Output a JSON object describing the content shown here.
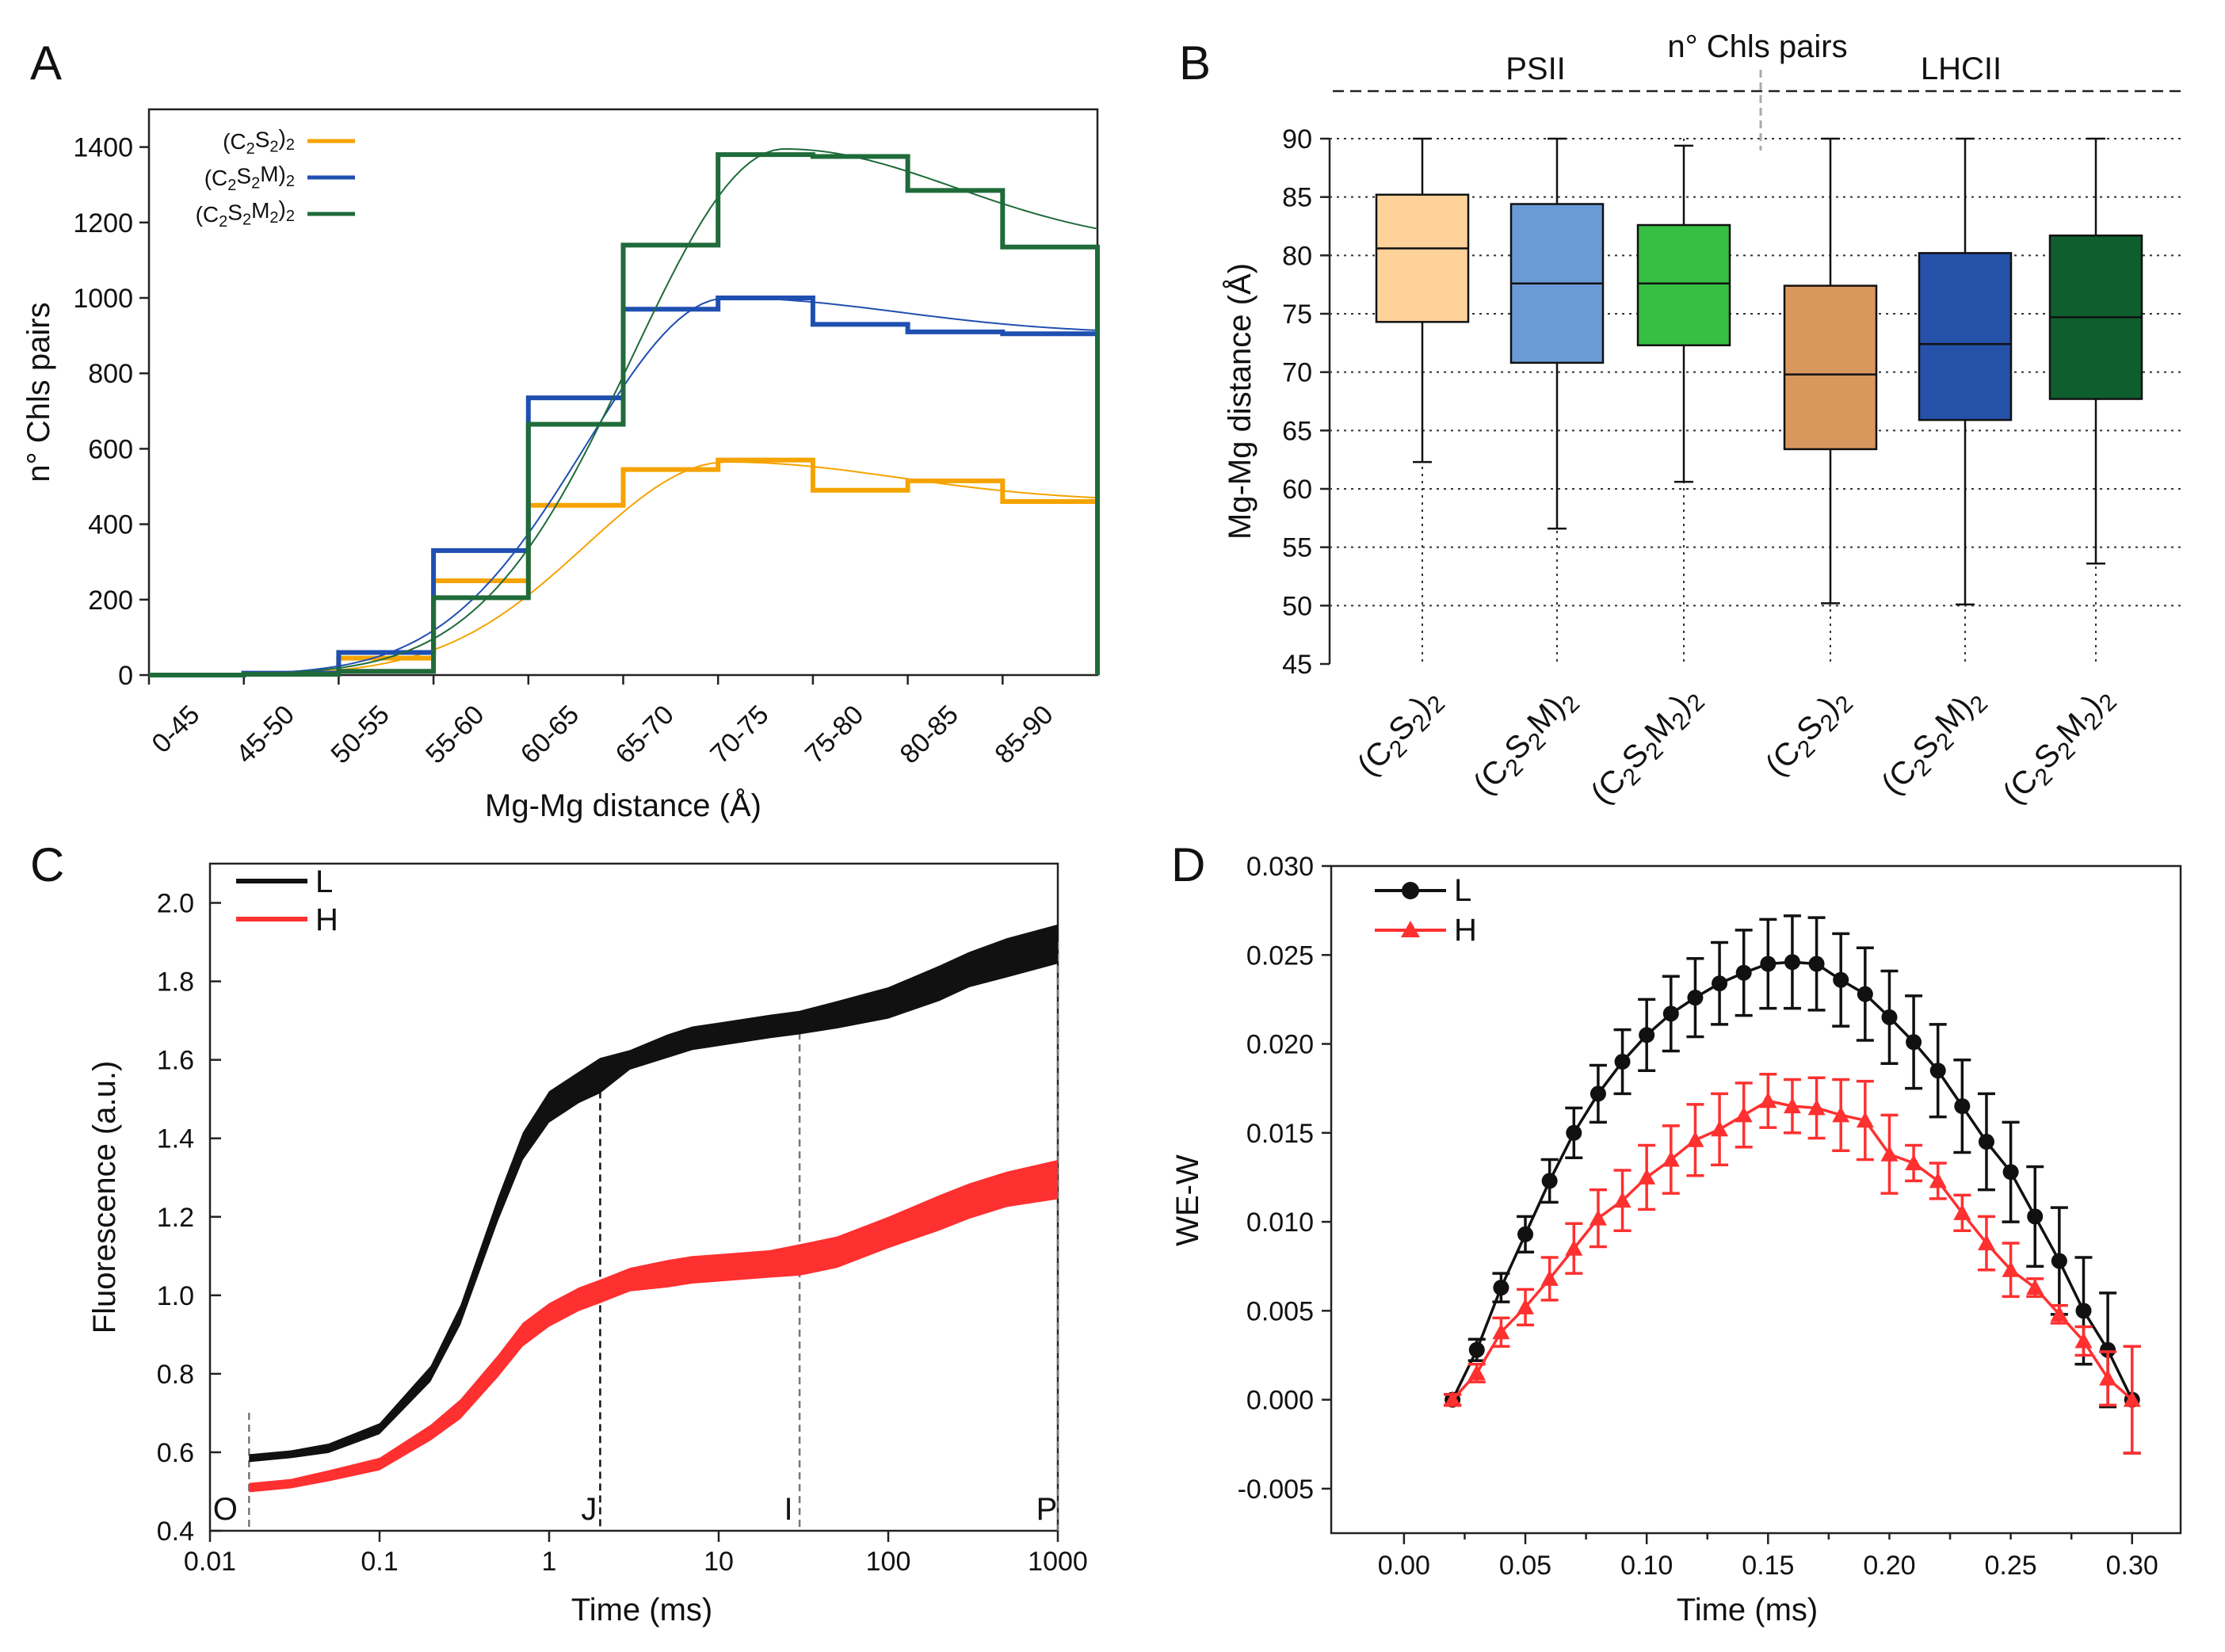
{
  "figure": {
    "labels": [
      "A",
      "B",
      "C",
      "D"
    ]
  },
  "chart_data": [
    {
      "panel": "A",
      "type": "bar",
      "style": "step histogram with fitted curves",
      "title": "",
      "xlabel": "Mg-Mg distance (Å)",
      "ylabel": "n° Chls pairs",
      "ylim": [
        0,
        1500
      ],
      "yticks": [
        0,
        200,
        400,
        600,
        800,
        1000,
        1200,
        1400
      ],
      "grid": false,
      "legend_position": "top-left",
      "categories": [
        "0-45",
        "45-50",
        "50-55",
        "55-60",
        "60-65",
        "65-70",
        "70-75",
        "75-80",
        "80-85",
        "85-90"
      ],
      "series": [
        {
          "name": "(C2S2)2",
          "color": "#f5a300",
          "values": [
            0,
            5,
            45,
            250,
            450,
            545,
            570,
            490,
            515,
            460
          ],
          "fit_peak": 70.5,
          "fit_max": 565
        },
        {
          "name": "(C2S2M)2",
          "color": "#1f4fb0",
          "values": [
            0,
            5,
            60,
            330,
            735,
            970,
            1000,
            930,
            910,
            905
          ],
          "fit_peak": 70.5,
          "fit_max": 1000
        },
        {
          "name": "(C2S2M2)2",
          "color": "#1f6b3a",
          "values": [
            0,
            2,
            10,
            205,
            665,
            1140,
            1380,
            1375,
            1285,
            1135
          ],
          "fit_peak": 73.5,
          "fit_max": 1395
        }
      ]
    },
    {
      "panel": "B",
      "type": "box",
      "title": "n° Chls pairs",
      "groups": [
        "PSII",
        "LHCII"
      ],
      "xlabel": "",
      "ylabel": "Mg-Mg distance (Å)",
      "ylim": [
        45,
        90
      ],
      "yticks": [
        45,
        50,
        55,
        60,
        65,
        70,
        75,
        80,
        85,
        90
      ],
      "grid": true,
      "boxes": [
        {
          "label": "(C2S2)2",
          "group": "PSII",
          "color": "#ffd29a",
          "min": 62.3,
          "q1": 74.3,
          "median": 80.6,
          "q3": 85.2,
          "max": 90
        },
        {
          "label": "(C2S2M)2",
          "group": "PSII",
          "color": "#6b9bd6",
          "min": 56.6,
          "q1": 70.8,
          "median": 77.6,
          "q3": 84.4,
          "max": 90
        },
        {
          "label": "(C2S2M2)2",
          "group": "PSII",
          "color": "#35bf43",
          "min": 60.6,
          "q1": 72.3,
          "median": 77.6,
          "q3": 82.6,
          "max": 89.4
        },
        {
          "label": "(C2S2)2",
          "group": "LHCII",
          "color": "#d9975e",
          "min": 50.2,
          "q1": 63.4,
          "median": 69.8,
          "q3": 77.4,
          "max": 90
        },
        {
          "label": "(C2S2M)2",
          "group": "LHCII",
          "color": "#2551a8",
          "min": 50.1,
          "q1": 65.9,
          "median": 72.4,
          "q3": 80.2,
          "max": 90
        },
        {
          "label": "(C2S2M2)2",
          "group": "LHCII",
          "color": "#0f5e2d",
          "min": 53.6,
          "q1": 67.7,
          "median": 74.7,
          "q3": 81.7,
          "max": 90
        }
      ]
    },
    {
      "panel": "C",
      "type": "line",
      "title": "",
      "xlabel": "Time (ms)",
      "ylabel": "Fluorescence (a.u.)",
      "xscale": "log",
      "xlim": [
        0.01,
        1000
      ],
      "xticks": [
        0.01,
        0.1,
        1,
        10,
        100,
        1000
      ],
      "xticklabels": [
        "0.01",
        "0.1",
        "1",
        "10",
        "100",
        "1000"
      ],
      "ylim": [
        0.4,
        2.1
      ],
      "yticks": [
        0.4,
        0.6,
        0.8,
        1.0,
        1.2,
        1.4,
        1.6,
        1.8,
        2.0
      ],
      "yticklabels": [
        "0.4",
        "0.6",
        "0.8",
        "1.0",
        "1.2",
        "1.4",
        "1.6",
        "1.8",
        "2.0"
      ],
      "legend_position": "top-left",
      "markers": [
        {
          "label": "O",
          "x": 0.017
        },
        {
          "label": "J",
          "x": 2
        },
        {
          "label": "I",
          "x": 30
        },
        {
          "label": "P",
          "x": 1000
        }
      ],
      "x": [
        0.017,
        0.03,
        0.05,
        0.1,
        0.2,
        0.3,
        0.5,
        0.7,
        1,
        1.5,
        2,
        3,
        5,
        7,
        10,
        20,
        30,
        50,
        100,
        200,
        300,
        500,
        1000
      ],
      "series": [
        {
          "name": "L",
          "color": "#111111",
          "values": [
            0.585,
            0.595,
            0.61,
            0.66,
            0.8,
            0.95,
            1.22,
            1.38,
            1.48,
            1.53,
            1.56,
            1.6,
            1.635,
            1.655,
            1.665,
            1.685,
            1.695,
            1.715,
            1.745,
            1.795,
            1.83,
            1.86,
            1.895
          ],
          "error": [
            0.01,
            0.01,
            0.012,
            0.014,
            0.02,
            0.025,
            0.03,
            0.035,
            0.04,
            0.04,
            0.045,
            0.025,
            0.03,
            0.03,
            0.03,
            0.03,
            0.03,
            0.035,
            0.04,
            0.045,
            0.045,
            0.05,
            0.05
          ]
        },
        {
          "name": "H",
          "color": "#ff3030",
          "values": [
            0.51,
            0.52,
            0.54,
            0.57,
            0.65,
            0.71,
            0.82,
            0.9,
            0.95,
            0.99,
            1.01,
            1.04,
            1.055,
            1.065,
            1.07,
            1.08,
            1.09,
            1.11,
            1.16,
            1.21,
            1.24,
            1.27,
            1.295
          ],
          "error": [
            0.012,
            0.012,
            0.014,
            0.016,
            0.02,
            0.025,
            0.028,
            0.03,
            0.03,
            0.03,
            0.03,
            0.03,
            0.035,
            0.035,
            0.035,
            0.035,
            0.04,
            0.04,
            0.04,
            0.045,
            0.045,
            0.045,
            0.05
          ]
        }
      ]
    },
    {
      "panel": "D",
      "type": "line",
      "title": "",
      "xlabel": "Time (ms)",
      "ylabel": "WE-W",
      "xlim": [
        -0.03,
        0.32
      ],
      "xticks": [
        0,
        0.05,
        0.1,
        0.15,
        0.2,
        0.25,
        0.3
      ],
      "xticklabels": [
        "0.00",
        "0.05",
        "0.10",
        "0.15",
        "0.20",
        "0.25",
        "0.30"
      ],
      "ylim": [
        -0.0075,
        0.03
      ],
      "yticks": [
        -0.005,
        0,
        0.005,
        0.01,
        0.015,
        0.02,
        0.025,
        0.03
      ],
      "yticklabels": [
        "-0.005",
        "0.000",
        "0.005",
        "0.010",
        "0.015",
        "0.020",
        "0.025",
        "0.030"
      ],
      "legend_position": "top-left",
      "x": [
        0.02,
        0.03,
        0.04,
        0.05,
        0.06,
        0.07,
        0.08,
        0.09,
        0.1,
        0.11,
        0.12,
        0.13,
        0.14,
        0.15,
        0.16,
        0.17,
        0.18,
        0.19,
        0.2,
        0.21,
        0.22,
        0.23,
        0.24,
        0.25,
        0.26,
        0.27,
        0.28,
        0.29,
        0.3
      ],
      "series": [
        {
          "name": "L",
          "color": "#111111",
          "marker": "circle",
          "values": [
            0.0,
            0.0028,
            0.0063,
            0.0093,
            0.0123,
            0.015,
            0.0172,
            0.019,
            0.0205,
            0.0217,
            0.0226,
            0.0234,
            0.024,
            0.0245,
            0.0246,
            0.0245,
            0.0236,
            0.0228,
            0.0215,
            0.0201,
            0.0185,
            0.0165,
            0.0145,
            0.0128,
            0.0103,
            0.0078,
            0.005,
            0.0028,
            0.0
          ],
          "error": [
            0.0003,
            0.0006,
            0.0008,
            0.001,
            0.0012,
            0.0014,
            0.0016,
            0.0018,
            0.002,
            0.0021,
            0.0022,
            0.0023,
            0.0024,
            0.0025,
            0.0026,
            0.0026,
            0.0026,
            0.0026,
            0.0026,
            0.0026,
            0.0026,
            0.0026,
            0.0027,
            0.0028,
            0.0028,
            0.003,
            0.003,
            0.0032,
            0.003
          ]
        },
        {
          "name": "H",
          "color": "#ff3030",
          "marker": "triangle",
          "values": [
            0.0,
            0.0015,
            0.0038,
            0.0052,
            0.0068,
            0.0085,
            0.0102,
            0.0112,
            0.0125,
            0.0135,
            0.0146,
            0.0152,
            0.016,
            0.0168,
            0.0165,
            0.0164,
            0.016,
            0.0157,
            0.0138,
            0.0133,
            0.0123,
            0.0105,
            0.0088,
            0.0073,
            0.0063,
            0.0048,
            0.0033,
            0.0012,
            0.0
          ],
          "error": [
            0.0003,
            0.0005,
            0.0008,
            0.001,
            0.0012,
            0.0014,
            0.0016,
            0.0017,
            0.0018,
            0.0019,
            0.002,
            0.002,
            0.0018,
            0.0015,
            0.0015,
            0.0017,
            0.002,
            0.0022,
            0.0022,
            0.001,
            0.001,
            0.001,
            0.0015,
            0.0015,
            0.0005,
            0.0005,
            0.0008,
            0.0015,
            0.003
          ]
        }
      ]
    }
  ]
}
